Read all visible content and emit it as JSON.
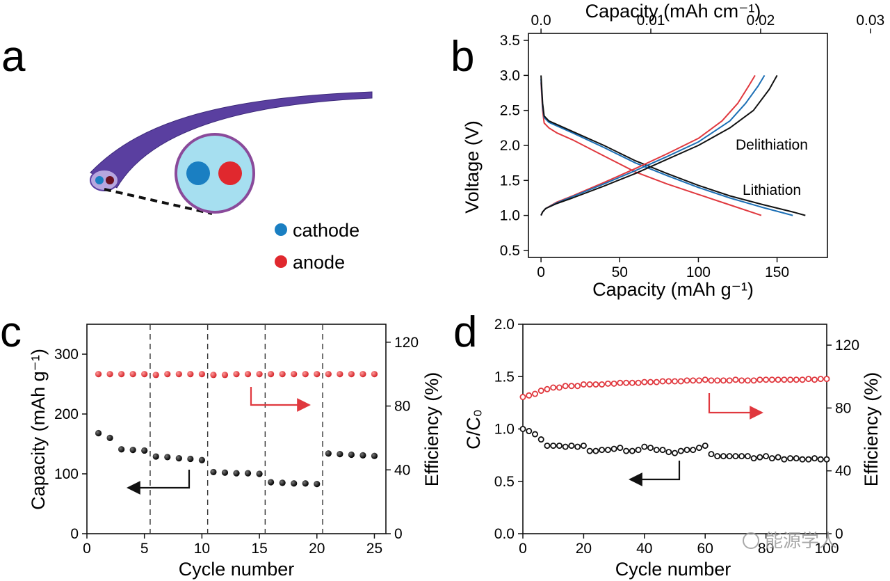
{
  "panel_labels": {
    "a": "a",
    "b": "b",
    "c": "c",
    "d": "d"
  },
  "schematic": {
    "legend": [
      {
        "label": "cathode",
        "color": "#1a7fc2"
      },
      {
        "label": "anode",
        "color": "#e0282e"
      }
    ],
    "fiber_color": "#5a3fa0",
    "cross_section_color": "#a6dff0",
    "outline_color": "#8a4a9a"
  },
  "watermark": "能源学人",
  "colors": {
    "black": "#111111",
    "red": "#e0383e",
    "blue": "#1c6fb5"
  },
  "chart_data": [
    {
      "panel": "b",
      "type": "line",
      "xlabel": "Capacity (mAh g⁻¹)",
      "x2label": "Capacity (mAh cm⁻¹)",
      "ylabel": "Voltage (V)",
      "xlim": [
        -8,
        182
      ],
      "ylim": [
        0.4,
        3.6
      ],
      "xticks": [
        "0",
        "50",
        "100",
        "150"
      ],
      "x2ticks": [
        "0.0",
        "0.01",
        "0.02",
        "0.03"
      ],
      "yticks": [
        "0.5",
        "1.0",
        "1.5",
        "2.0",
        "2.5",
        "3.0",
        "3.5"
      ],
      "annotations": [
        "Delithiation",
        "Lithiation"
      ],
      "series": [
        {
          "color": "black",
          "kind": "lithiation",
          "x": [
            0,
            1,
            2,
            5,
            10,
            20,
            40,
            60,
            80,
            100,
            120,
            140,
            160,
            168
          ],
          "y": [
            3.0,
            2.6,
            2.42,
            2.35,
            2.3,
            2.2,
            2.0,
            1.78,
            1.6,
            1.43,
            1.28,
            1.16,
            1.05,
            1.0
          ]
        },
        {
          "color": "blue",
          "kind": "lithiation",
          "x": [
            0,
            1,
            2,
            5,
            10,
            20,
            40,
            60,
            80,
            100,
            120,
            140,
            160
          ],
          "y": [
            2.95,
            2.55,
            2.4,
            2.33,
            2.28,
            2.18,
            1.97,
            1.75,
            1.57,
            1.4,
            1.25,
            1.12,
            1.0
          ]
        },
        {
          "color": "red",
          "kind": "lithiation",
          "x": [
            0,
            1,
            2,
            5,
            10,
            20,
            40,
            60,
            80,
            100,
            120,
            140
          ],
          "y": [
            2.9,
            2.5,
            2.32,
            2.25,
            2.18,
            2.08,
            1.85,
            1.62,
            1.45,
            1.3,
            1.15,
            1.0
          ]
        },
        {
          "color": "black",
          "kind": "delithiation",
          "x": [
            0,
            1,
            3,
            10,
            20,
            40,
            60,
            80,
            100,
            120,
            135,
            145,
            150
          ],
          "y": [
            1.0,
            1.05,
            1.1,
            1.17,
            1.25,
            1.42,
            1.6,
            1.8,
            2.0,
            2.25,
            2.5,
            2.8,
            3.0
          ]
        },
        {
          "color": "blue",
          "kind": "delithiation",
          "x": [
            0,
            1,
            3,
            10,
            20,
            40,
            60,
            80,
            100,
            120,
            130,
            138,
            142
          ],
          "y": [
            1.0,
            1.05,
            1.1,
            1.18,
            1.27,
            1.45,
            1.64,
            1.84,
            2.05,
            2.35,
            2.6,
            2.85,
            3.0
          ]
        },
        {
          "color": "red",
          "kind": "delithiation",
          "x": [
            0,
            1,
            3,
            10,
            20,
            40,
            60,
            80,
            100,
            115,
            125,
            132,
            136
          ],
          "y": [
            1.0,
            1.05,
            1.1,
            1.19,
            1.28,
            1.47,
            1.67,
            1.88,
            2.1,
            2.35,
            2.6,
            2.85,
            3.0
          ]
        }
      ]
    },
    {
      "panel": "c",
      "type": "scatter",
      "xlabel": "Cycle number",
      "ylabel": "Capacity (mAh g⁻¹)",
      "y2label": "Efficiency (%)",
      "xlim": [
        0,
        26
      ],
      "ylim": [
        0,
        350
      ],
      "y2lim": [
        0,
        131.25
      ],
      "xticks": [
        "0",
        "5",
        "10",
        "15",
        "20",
        "25"
      ],
      "yticks": [
        "0",
        "100",
        "200",
        "300"
      ],
      "y2ticks": [
        "0",
        "40",
        "80",
        "120"
      ],
      "dashed_lines_x": [
        5.5,
        10.5,
        15.5,
        20.5
      ],
      "capacity": {
        "x": [
          1,
          2,
          3,
          4,
          5,
          6,
          7,
          8,
          9,
          10,
          11,
          12,
          13,
          14,
          15,
          16,
          17,
          18,
          19,
          20,
          21,
          22,
          23,
          24,
          25
        ],
        "y": [
          168,
          160,
          141,
          140,
          139,
          129,
          128,
          126,
          125,
          123,
          103,
          102,
          101,
          101,
          100,
          86,
          85,
          84,
          84,
          83,
          134,
          133,
          132,
          131,
          130
        ]
      },
      "efficiency": {
        "x": [
          1,
          2,
          3,
          4,
          5,
          6,
          7,
          8,
          9,
          10,
          11,
          12,
          13,
          14,
          15,
          16,
          17,
          18,
          19,
          20,
          21,
          22,
          23,
          24,
          25
        ],
        "y": [
          100,
          100,
          100,
          100,
          100,
          99.5,
          100,
          100,
          100,
          100,
          99.5,
          99.5,
          100,
          100,
          100,
          100,
          100,
          100,
          100,
          100,
          100,
          100,
          100,
          100,
          100
        ]
      }
    },
    {
      "panel": "d",
      "type": "scatter",
      "xlabel": "Cycle number",
      "ylabel": "C/C₀",
      "y2label": "Efficiency (%)",
      "xlim": [
        0,
        100
      ],
      "ylim": [
        0,
        2.0
      ],
      "y2lim": [
        0,
        133.3
      ],
      "xticks": [
        "0",
        "20",
        "40",
        "60",
        "80",
        "100"
      ],
      "yticks": [
        "0.0",
        "0.5",
        "1.0",
        "1.5",
        "2.0"
      ],
      "y2ticks": [
        "0",
        "40",
        "80",
        "120"
      ],
      "retention": {
        "x": [
          0,
          2,
          4,
          6,
          8,
          10,
          12,
          14,
          16,
          18,
          20,
          22,
          24,
          26,
          28,
          30,
          32,
          34,
          36,
          38,
          40,
          42,
          44,
          46,
          48,
          50,
          52,
          54,
          56,
          58,
          60,
          62,
          64,
          66,
          68,
          70,
          72,
          74,
          76,
          78,
          80,
          82,
          84,
          86,
          88,
          90,
          92,
          94,
          96,
          98,
          100
        ],
        "y": [
          1.0,
          0.98,
          0.95,
          0.9,
          0.84,
          0.84,
          0.84,
          0.83,
          0.84,
          0.83,
          0.84,
          0.79,
          0.79,
          0.8,
          0.8,
          0.81,
          0.82,
          0.79,
          0.79,
          0.8,
          0.83,
          0.82,
          0.8,
          0.8,
          0.78,
          0.77,
          0.79,
          0.8,
          0.8,
          0.82,
          0.84,
          0.76,
          0.74,
          0.74,
          0.74,
          0.74,
          0.74,
          0.74,
          0.72,
          0.73,
          0.74,
          0.72,
          0.73,
          0.71,
          0.72,
          0.72,
          0.71,
          0.71,
          0.72,
          0.71,
          0.71
        ]
      },
      "efficiency": {
        "x": [
          0,
          2,
          4,
          6,
          8,
          10,
          12,
          14,
          16,
          18,
          20,
          22,
          24,
          26,
          28,
          30,
          32,
          34,
          36,
          38,
          40,
          42,
          44,
          46,
          48,
          50,
          52,
          54,
          56,
          58,
          60,
          62,
          64,
          66,
          68,
          70,
          72,
          74,
          76,
          78,
          80,
          82,
          84,
          86,
          88,
          90,
          92,
          94,
          96,
          98,
          100
        ],
        "y": [
          87,
          88,
          89,
          91,
          92,
          93,
          93,
          94,
          94,
          94,
          95,
          95,
          95,
          95,
          95.5,
          95.5,
          96,
          96,
          96,
          96,
          96.5,
          96.5,
          96.5,
          97,
          97,
          97,
          97,
          97.5,
          97.5,
          97.5,
          98,
          97.5,
          97.5,
          97.5,
          97.5,
          98,
          97.5,
          97.5,
          97.5,
          98,
          98,
          98,
          98,
          98,
          98,
          98,
          98,
          98.5,
          98,
          98.5,
          98.5
        ]
      }
    }
  ]
}
